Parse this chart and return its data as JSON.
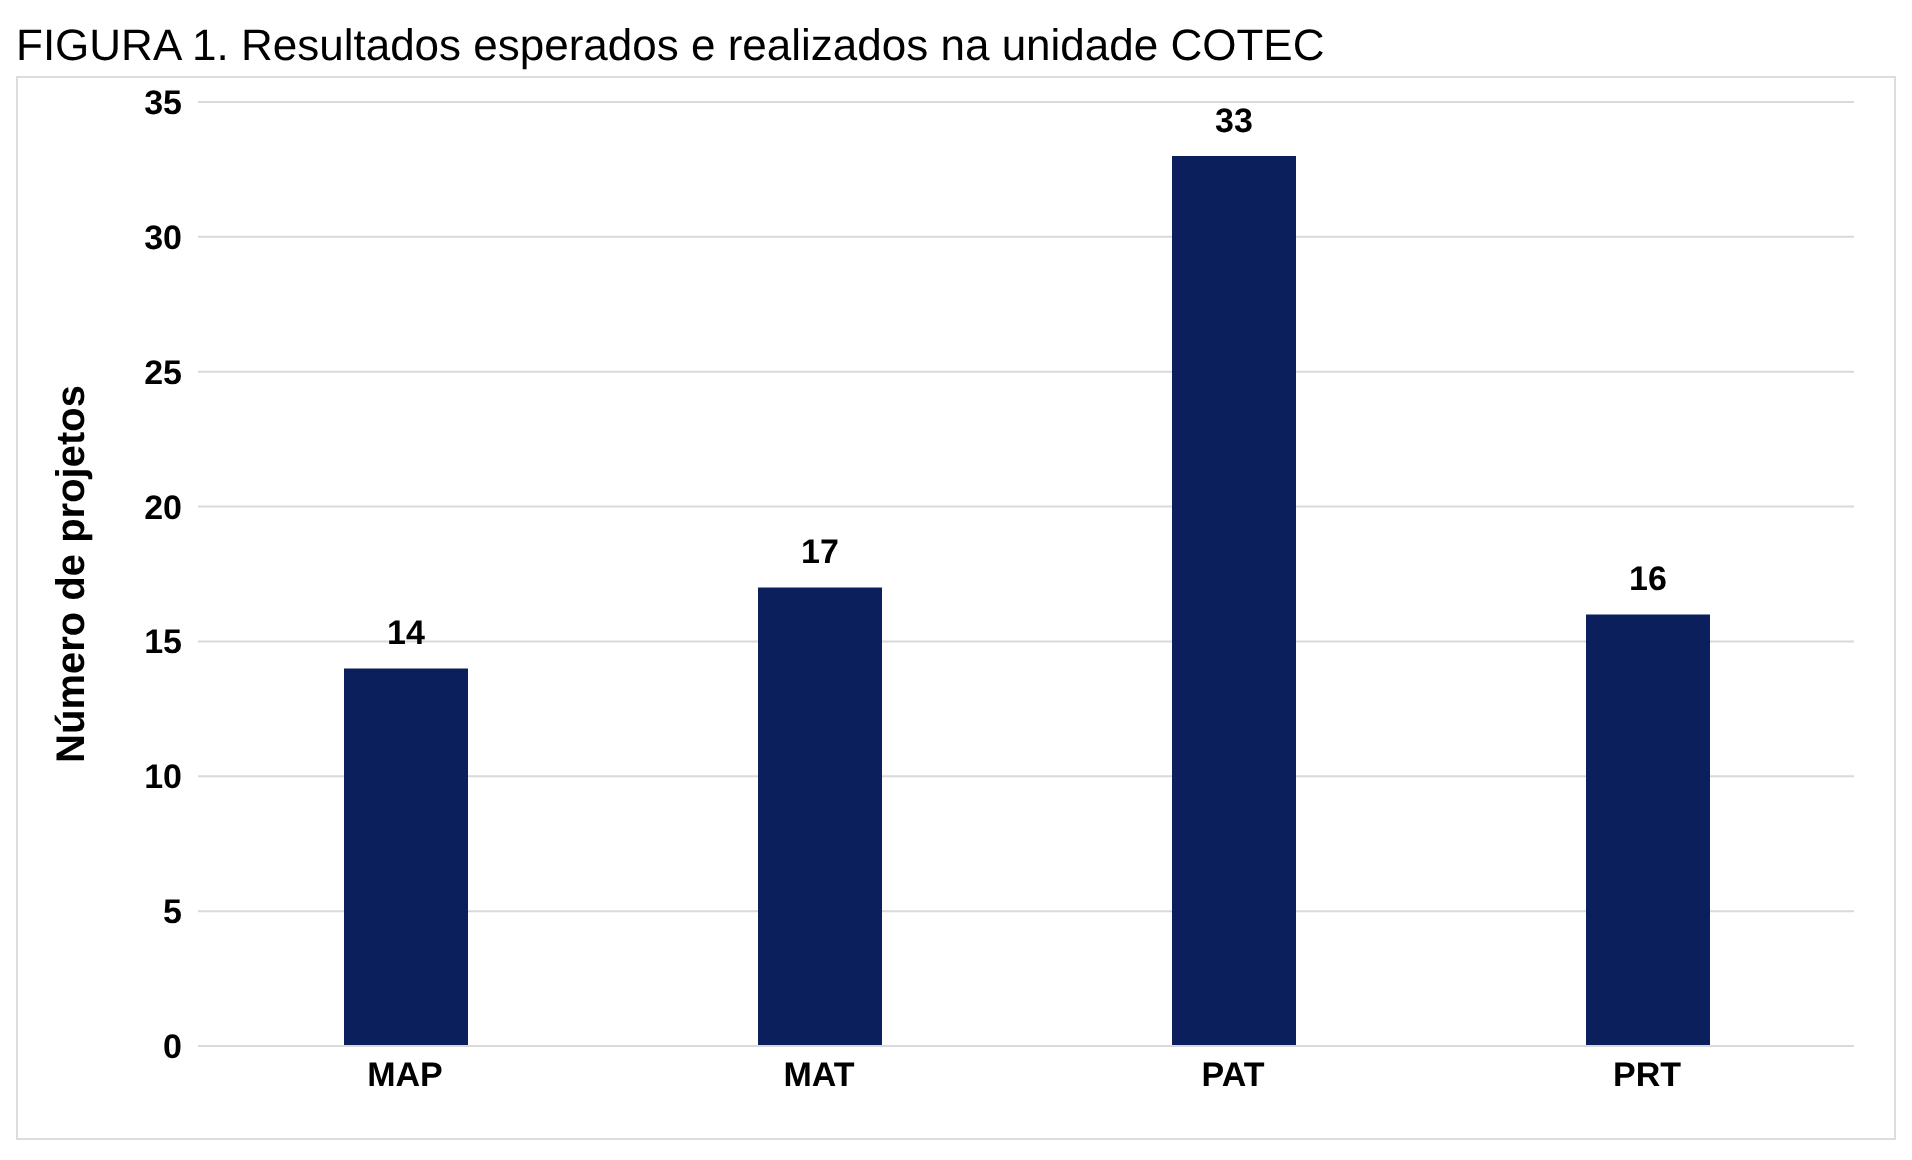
{
  "chart_data": {
    "type": "bar",
    "title": "FIGURA 1. Resultados esperados e realizados na unidade COTEC",
    "ylabel": "Número de projetos",
    "categories": [
      "MAP",
      "MAT",
      "PAT",
      "PRT"
    ],
    "values": [
      14,
      17,
      33,
      16
    ],
    "color": "#0a1f5c",
    "ylim": [
      0,
      35
    ],
    "yticks": [
      0,
      5,
      10,
      15,
      20,
      25,
      30,
      35
    ],
    "grid": "y",
    "data_labels": true,
    "legend": false
  }
}
